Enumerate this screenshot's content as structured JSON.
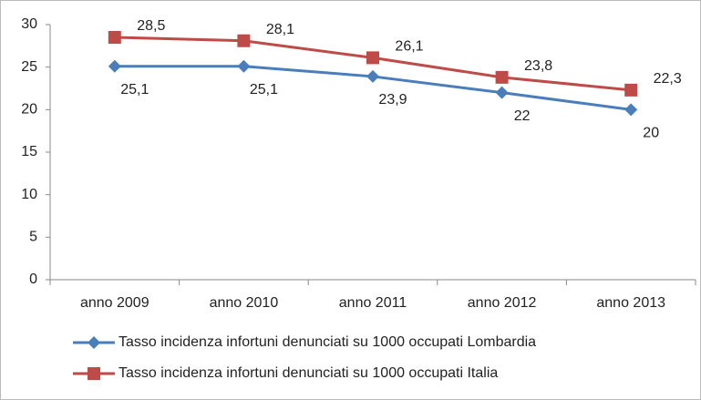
{
  "chart_data": {
    "type": "line",
    "categories": [
      "anno 2009",
      "anno 2010",
      "anno 2011",
      "anno 2012",
      "anno 2013"
    ],
    "series": [
      {
        "name": "Tasso incidenza infortuni denunciati su 1000 occupati Lombardia",
        "color": "#4a7ebb",
        "marker": "diamond",
        "values": [
          25.1,
          25.1,
          23.9,
          22,
          20
        ],
        "value_labels": [
          "25,1",
          "25,1",
          "23,9",
          "22",
          "20"
        ]
      },
      {
        "name": "Tasso incidenza infortuni denunciati su 1000 occupati Italia",
        "color": "#be4b48",
        "marker": "square",
        "values": [
          28.5,
          28.1,
          26.1,
          23.8,
          22.3
        ],
        "value_labels": [
          "28,5",
          "28,1",
          "26,1",
          "23,8",
          "22,3"
        ]
      }
    ],
    "ylim": [
      0,
      30
    ],
    "yticks": [
      0,
      5,
      10,
      15,
      20,
      25,
      30
    ],
    "grid": false,
    "legend": "bottom"
  }
}
